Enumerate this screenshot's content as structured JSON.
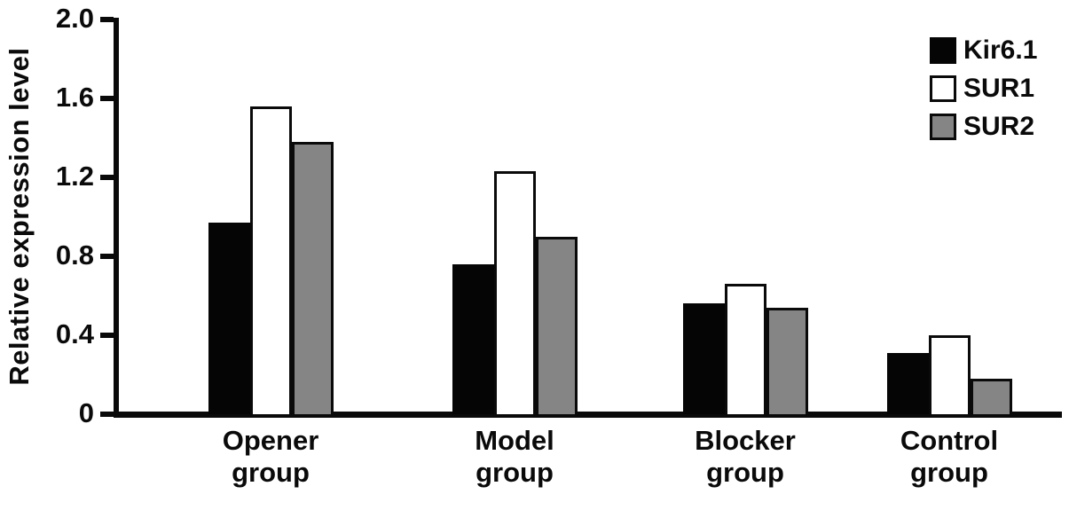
{
  "chart_data": {
    "type": "bar",
    "title": "",
    "xlabel": "",
    "ylabel": "Relative expression level",
    "ylim": [
      0,
      2.0
    ],
    "yticks": [
      0,
      0.4,
      0.8,
      1.2,
      1.6,
      2.0
    ],
    "ytick_labels": [
      "0",
      "0.4",
      "0.8",
      "1.2",
      "1.6",
      "2.0"
    ],
    "grid": false,
    "legend_position": "top-right",
    "categories": [
      "Opener group",
      "Model group",
      "Blocker group",
      "Control group"
    ],
    "category_lines": [
      [
        "Opener",
        "group"
      ],
      [
        "Model",
        "group"
      ],
      [
        "Blocker",
        "group"
      ],
      [
        "Control",
        "group"
      ]
    ],
    "series": [
      {
        "name": "Kir6.1",
        "fill": "#050505",
        "border": "#050505",
        "values": [
          0.97,
          0.76,
          0.56,
          0.31
        ]
      },
      {
        "name": "SUR1",
        "fill": "#ffffff",
        "border": "#0a0a0a",
        "values": [
          1.56,
          1.23,
          0.66,
          0.4
        ]
      },
      {
        "name": "SUR2",
        "fill": "#858585",
        "border": "#0a0a0a",
        "values": [
          1.38,
          0.9,
          0.54,
          0.18
        ]
      }
    ]
  },
  "colors": {
    "background": "#ffffff",
    "axis": "#0a0a0a",
    "text": "#0a0a0a",
    "bar_black": "#050505",
    "bar_white": "#ffffff",
    "bar_gray": "#858585"
  }
}
